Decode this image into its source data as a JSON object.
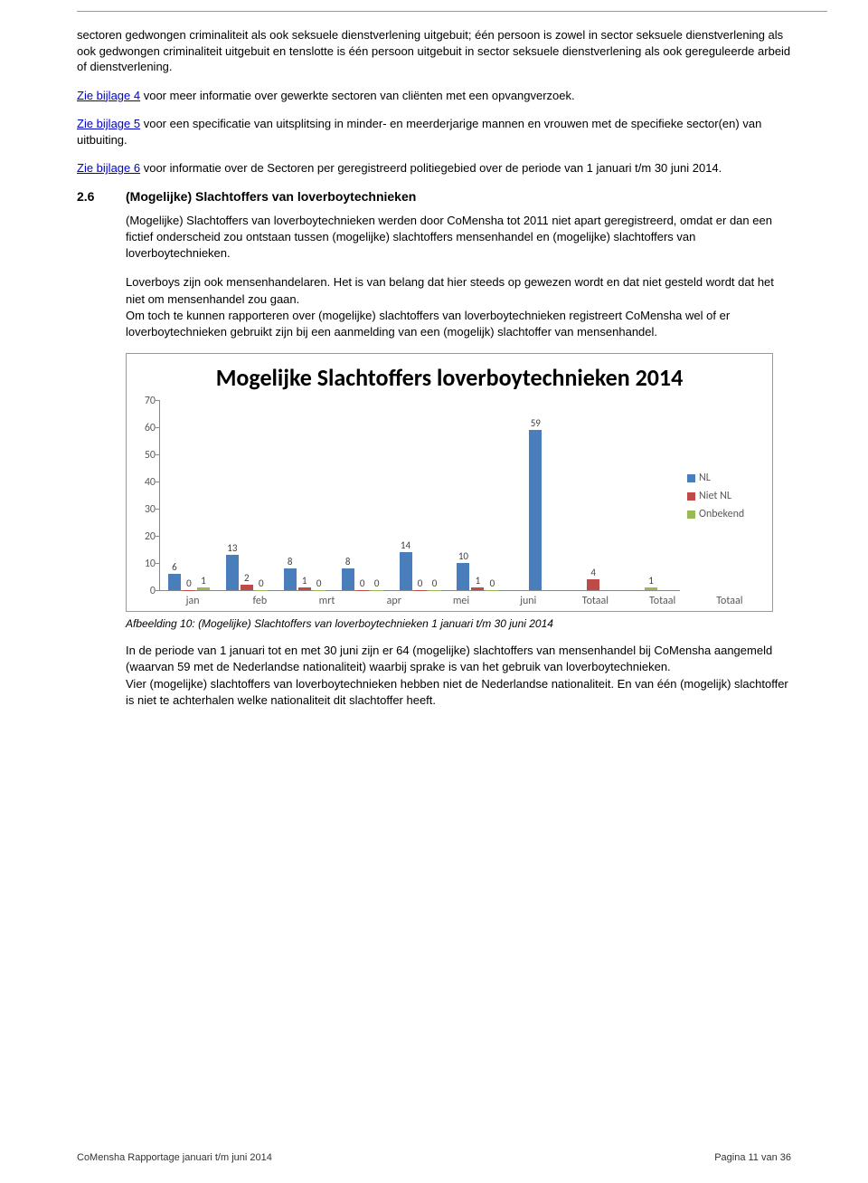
{
  "para1": "sectoren gedwongen criminaliteit als ook seksuele dienstverlening uitgebuit; één persoon is zowel in sector seksuele dienstverlening als ook gedwongen criminaliteit uitgebuit en tenslotte is één persoon uitgebuit in sector seksuele dienstverlening als ook gereguleerde arbeid of dienstverlening.",
  "link4": "Zie bijlage 4",
  "para2_rest": " voor meer informatie over gewerkte sectoren van cliënten met een opvangverzoek.",
  "link5": "Zie bijlage 5",
  "para3_rest": " voor een specificatie van uitsplitsing in minder- en meerderjarige mannen en vrouwen met de specifieke sector(en) van uitbuiting.",
  "link6": "Zie bijlage 6",
  "para4_rest": " voor informatie over de Sectoren per geregistreerd politiegebied over de periode van 1 januari t/m 30 juni 2014.",
  "section_num": "2.6",
  "section_title": "(Mogelijke) Slachtoffers van loverboytechnieken",
  "body1": "(Mogelijke) Slachtoffers van loverboytechnieken werden door CoMensha tot 2011 niet apart geregistreerd, omdat er dan een fictief onderscheid zou ontstaan tussen (mogelijke) slachtoffers mensenhandel en (mogelijke) slachtoffers van loverboytechnieken.",
  "body2": "Loverboys zijn ook mensenhandelaren. Het is van belang dat hier steeds op gewezen wordt en dat niet gesteld wordt dat het niet om mensenhandel zou gaan.\nOm toch te kunnen rapporteren over (mogelijke) slachtoffers van loverboytechnieken registreert CoMensha wel of er loverboytechnieken gebruikt zijn bij een aanmelding van een (mogelijk) slachtoffer van mensenhandel.",
  "chart": {
    "title": "Mogelijke Slachtoffers loverboytechnieken 2014",
    "ylim": [
      0,
      70
    ],
    "ytick_step": 10,
    "categories": [
      "jan",
      "feb",
      "mrt",
      "apr",
      "mei",
      "juni",
      "Totaal",
      "Totaal",
      "Totaal"
    ],
    "series": [
      {
        "name": "NL",
        "color": "#4a7ebb",
        "values": [
          6,
          13,
          8,
          8,
          14,
          10,
          59,
          null,
          null
        ]
      },
      {
        "name": "Niet NL",
        "color": "#be4b48",
        "values": [
          0,
          2,
          1,
          0,
          0,
          1,
          null,
          4,
          null
        ]
      },
      {
        "name": "Onbekend",
        "color": "#98b954",
        "values": [
          1,
          0,
          0,
          0,
          0,
          0,
          null,
          null,
          1
        ]
      }
    ],
    "bg": "#ffffff"
  },
  "caption": "Afbeelding 10: (Mogelijke) Slachtoffers van loverboytechnieken 1 januari t/m 30 juni 2014",
  "body3": "In de periode van 1 januari tot en met 30 juni  zijn er 64 (mogelijke) slachtoffers van mensenhandel bij CoMensha aangemeld (waarvan 59 met de Nederlandse nationaliteit) waarbij sprake is van het gebruik van loverboytechnieken.\nVier (mogelijke) slachtoffers van loverboytechnieken hebben niet de Nederlandse nationaliteit. En van één (mogelijk) slachtoffer is niet te achterhalen welke nationaliteit dit slachtoffer heeft.",
  "footer_left": "CoMensha Rapportage januari t/m juni 2014",
  "footer_right": "Pagina 11 van 36"
}
